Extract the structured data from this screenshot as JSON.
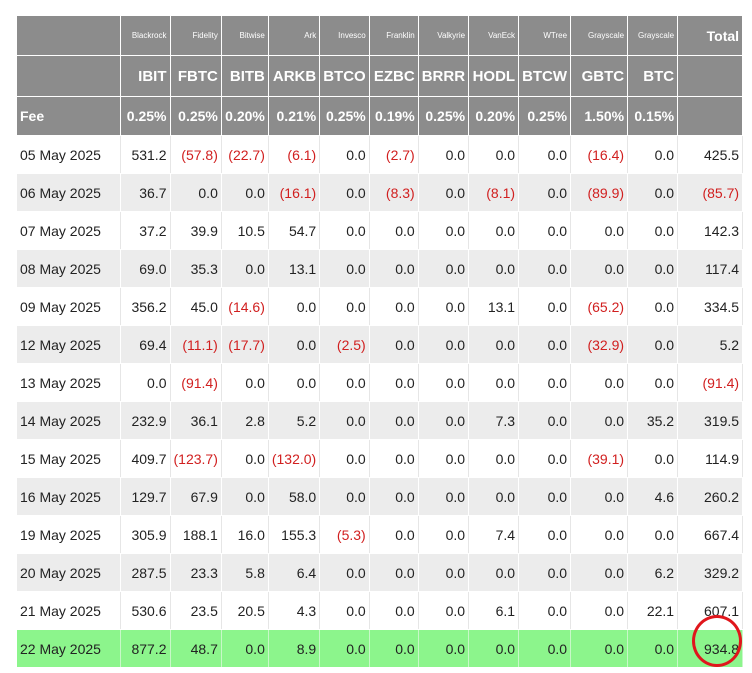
{
  "table": {
    "corner_label": "",
    "fee_label": "Fee",
    "total_label": "Total",
    "issuers": [
      "Blackrock",
      "Fidelity",
      "Bitwise",
      "Ark",
      "Invesco",
      "Franklin",
      "Valkyrie",
      "VanEck",
      "WTree",
      "Grayscale",
      "Grayscale"
    ],
    "tickers": [
      "IBIT",
      "FBTC",
      "BITB",
      "ARKB",
      "BTCO",
      "EZBC",
      "BRRR",
      "HODL",
      "BTCW",
      "GBTC",
      "BTC"
    ],
    "fees": [
      "0.25%",
      "0.25%",
      "0.20%",
      "0.21%",
      "0.25%",
      "0.19%",
      "0.25%",
      "0.20%",
      "0.25%",
      "1.50%",
      "0.15%"
    ],
    "rows": [
      {
        "date": "05 May 2025",
        "values": [
          "531.2",
          "(57.8)",
          "(22.7)",
          "(6.1)",
          "0.0",
          "(2.7)",
          "0.0",
          "0.0",
          "0.0",
          "(16.4)",
          "0.0"
        ],
        "total": "425.5"
      },
      {
        "date": "06 May 2025",
        "values": [
          "36.7",
          "0.0",
          "0.0",
          "(16.1)",
          "0.0",
          "(8.3)",
          "0.0",
          "(8.1)",
          "0.0",
          "(89.9)",
          "0.0"
        ],
        "total": "(85.7)"
      },
      {
        "date": "07 May 2025",
        "values": [
          "37.2",
          "39.9",
          "10.5",
          "54.7",
          "0.0",
          "0.0",
          "0.0",
          "0.0",
          "0.0",
          "0.0",
          "0.0"
        ],
        "total": "142.3"
      },
      {
        "date": "08 May 2025",
        "values": [
          "69.0",
          "35.3",
          "0.0",
          "13.1",
          "0.0",
          "0.0",
          "0.0",
          "0.0",
          "0.0",
          "0.0",
          "0.0"
        ],
        "total": "117.4"
      },
      {
        "date": "09 May 2025",
        "values": [
          "356.2",
          "45.0",
          "(14.6)",
          "0.0",
          "0.0",
          "0.0",
          "0.0",
          "13.1",
          "0.0",
          "(65.2)",
          "0.0"
        ],
        "total": "334.5"
      },
      {
        "date": "12 May 2025",
        "values": [
          "69.4",
          "(11.1)",
          "(17.7)",
          "0.0",
          "(2.5)",
          "0.0",
          "0.0",
          "0.0",
          "0.0",
          "(32.9)",
          "0.0"
        ],
        "total": "5.2"
      },
      {
        "date": "13 May 2025",
        "values": [
          "0.0",
          "(91.4)",
          "0.0",
          "0.0",
          "0.0",
          "0.0",
          "0.0",
          "0.0",
          "0.0",
          "0.0",
          "0.0"
        ],
        "total": "(91.4)"
      },
      {
        "date": "14 May 2025",
        "values": [
          "232.9",
          "36.1",
          "2.8",
          "5.2",
          "0.0",
          "0.0",
          "0.0",
          "7.3",
          "0.0",
          "0.0",
          "35.2"
        ],
        "total": "319.5"
      },
      {
        "date": "15 May 2025",
        "values": [
          "409.7",
          "(123.7)",
          "0.0",
          "(132.0)",
          "0.0",
          "0.0",
          "0.0",
          "0.0",
          "0.0",
          "(39.1)",
          "0.0"
        ],
        "total": "114.9"
      },
      {
        "date": "16 May 2025",
        "values": [
          "129.7",
          "67.9",
          "0.0",
          "58.0",
          "0.0",
          "0.0",
          "0.0",
          "0.0",
          "0.0",
          "0.0",
          "4.6"
        ],
        "total": "260.2"
      },
      {
        "date": "19 May 2025",
        "values": [
          "305.9",
          "188.1",
          "16.0",
          "155.3",
          "(5.3)",
          "0.0",
          "0.0",
          "7.4",
          "0.0",
          "0.0",
          "0.0"
        ],
        "total": "667.4"
      },
      {
        "date": "20 May 2025",
        "values": [
          "287.5",
          "23.3",
          "5.8",
          "6.4",
          "0.0",
          "0.0",
          "0.0",
          "0.0",
          "0.0",
          "0.0",
          "6.2"
        ],
        "total": "329.2"
      },
      {
        "date": "21 May 2025",
        "values": [
          "530.6",
          "23.5",
          "20.5",
          "4.3",
          "0.0",
          "0.0",
          "0.0",
          "6.1",
          "0.0",
          "0.0",
          "22.1"
        ],
        "total": "607.1"
      },
      {
        "date": "22 May 2025",
        "values": [
          "877.2",
          "48.7",
          "0.0",
          "8.9",
          "0.0",
          "0.0",
          "0.0",
          "0.0",
          "0.0",
          "0.0",
          "0.0"
        ],
        "total": "934.8",
        "highlight": true
      }
    ]
  },
  "colors": {
    "header_bg": "#8c8c8c",
    "negative": "#d11f1f",
    "highlight_row": "#8cf58c",
    "circle": "#e0161c"
  }
}
